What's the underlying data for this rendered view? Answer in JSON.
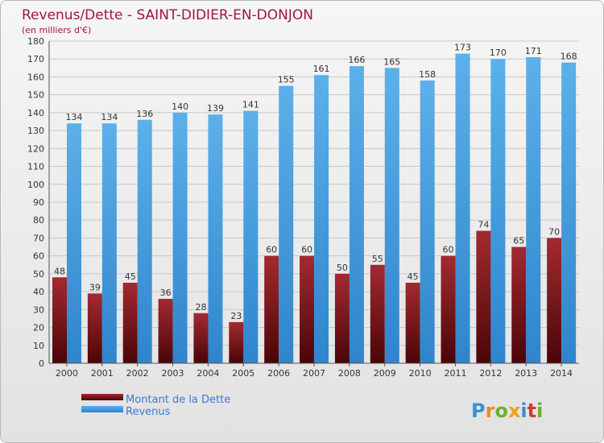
{
  "chart_data": {
    "type": "bar",
    "title": "Revenus/Dette - SAINT-DIDIER-EN-DONJON",
    "subtitle": "(en milliers d'€)",
    "categories": [
      "2000",
      "2001",
      "2002",
      "2003",
      "2004",
      "2005",
      "2006",
      "2007",
      "2008",
      "2009",
      "2010",
      "2011",
      "2012",
      "2013",
      "2014"
    ],
    "series": [
      {
        "name": "Montant de la Dette",
        "color": "#6e1a1e",
        "values": [
          48,
          39,
          45,
          36,
          28,
          23,
          60,
          60,
          50,
          55,
          45,
          60,
          74,
          65,
          70
        ]
      },
      {
        "name": "Revenus",
        "color": "#4aa0e0",
        "values": [
          134,
          134,
          136,
          140,
          139,
          141,
          155,
          161,
          166,
          165,
          158,
          173,
          170,
          171,
          168
        ]
      }
    ],
    "ylim": [
      0,
      180
    ],
    "yticks": [
      0,
      10,
      20,
      30,
      40,
      50,
      60,
      70,
      80,
      90,
      100,
      110,
      120,
      130,
      140,
      150,
      160,
      170,
      180
    ],
    "grid": true,
    "legend_position": "bottom-left"
  },
  "branding": {
    "logo_text": "Proxiti"
  }
}
